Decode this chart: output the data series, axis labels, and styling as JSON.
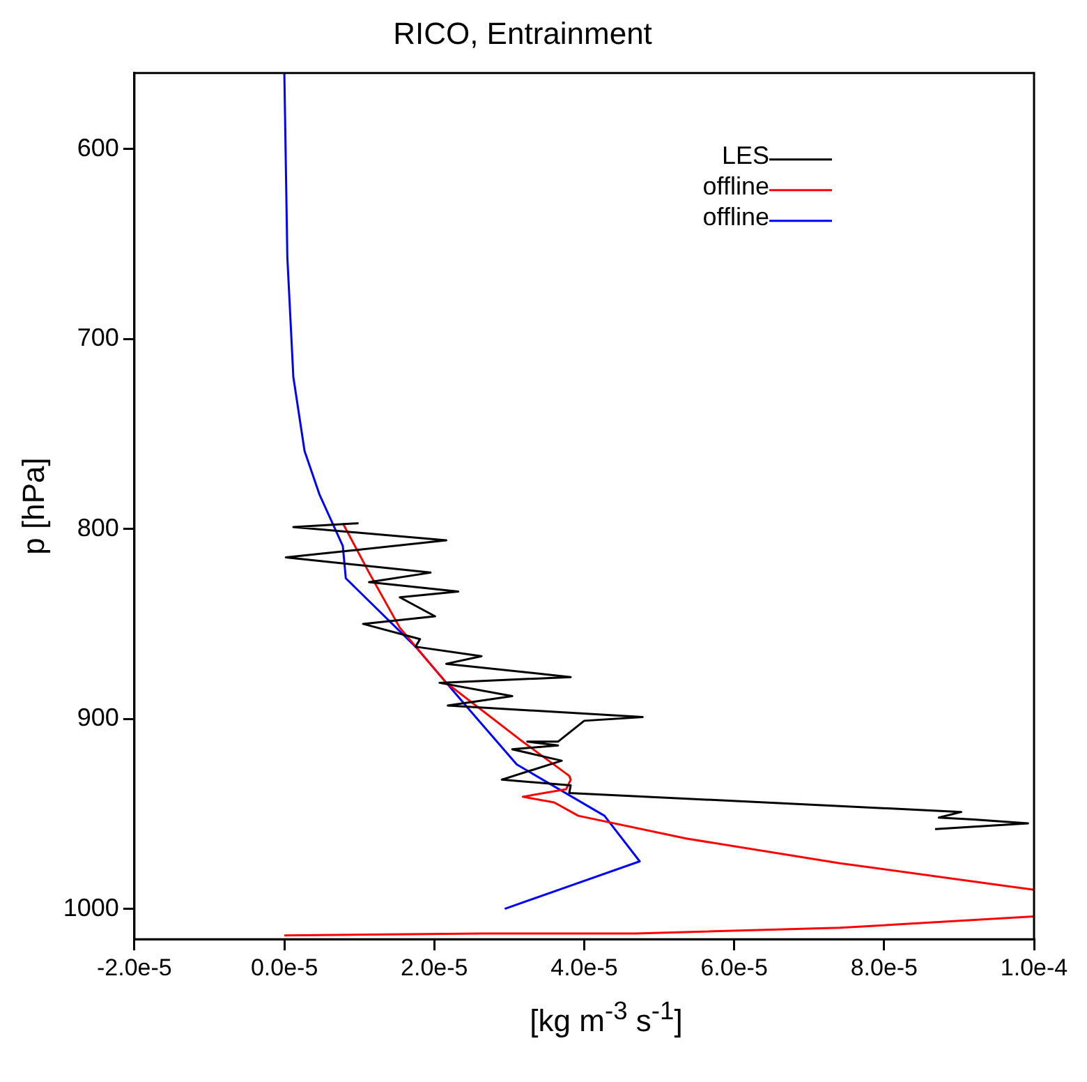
{
  "chart_data": {
    "type": "line",
    "title": "RICO, Entrainment",
    "xlabel": "[kg m$^{-3}$ s$^{-1}$]",
    "ylabel": "p [hPa]",
    "xlim": [
      -2e-05,
      0.0001
    ],
    "xticks": [
      {
        "value": -2e-05,
        "label": "-2.0e-5"
      },
      {
        "value": 0,
        "label": "0.0e-5"
      },
      {
        "value": 2e-05,
        "label": "2.0e-5"
      },
      {
        "value": 4e-05,
        "label": "4.0e-5"
      },
      {
        "value": 6e-05,
        "label": "6.0e-5"
      },
      {
        "value": 8e-05,
        "label": "8.0e-5"
      },
      {
        "value": 0.0001,
        "label": "1.0e-4"
      }
    ],
    "ylim": [
      1016,
      560
    ],
    "yticks": [
      600,
      700,
      800,
      900,
      1000
    ],
    "grid": false,
    "legend": "top right",
    "marker": "none",
    "line_style": "solid",
    "series": [
      {
        "name": "LES",
        "color": "#000000",
        "x": [
          9.9e-06,
          1.2e-06,
          2.16e-05,
          2e-07,
          1.95e-05,
          1.13e-05,
          2.32e-05,
          1.54e-05,
          2.01e-05,
          1.05e-05,
          1.81e-05,
          1.75e-05,
          2.63e-05,
          2.16e-05,
          3.82e-05,
          2.07e-05,
          3.04e-05,
          2.18e-05,
          4.78e-05,
          4e-05,
          3.65e-05,
          3.24e-05,
          3.65e-05,
          3.04e-05,
          3.7e-05,
          2.9e-05,
          3.82e-05,
          3.8e-05,
          9.03e-05,
          8.73e-05,
          9.2e-05,
          9.92e-05,
          8.68e-05
        ],
        "values": [
          797,
          799,
          806,
          815,
          823,
          828,
          833,
          836,
          846,
          850,
          858,
          862,
          867,
          871,
          878,
          881,
          888,
          893,
          899,
          901,
          912,
          912,
          914,
          916,
          922,
          932,
          935,
          939,
          949,
          952,
          953,
          955,
          958
        ]
      },
      {
        "name": "offline",
        "color": "#ff0000",
        "x": [
          7.8e-06,
          1.13e-05,
          1.54e-05,
          2.16e-05,
          3.18e-05,
          3.8e-05,
          3.82e-05,
          3.76e-05,
          3.18e-05,
          3.6e-05,
          3.92e-05,
          5.36e-05,
          7.41e-05,
          0.0001,
          null,
          0.0001,
          7.41e-05,
          4.68e-05,
          2.63e-05,
          0
        ],
        "values": [
          797,
          823,
          852,
          881,
          912,
          930,
          932,
          937,
          941,
          944,
          951,
          963,
          976,
          990,
          null,
          1004,
          1010,
          1013,
          1013,
          1014
        ]
      },
      {
        "name": "offline",
        "color": "#0000ff",
        "x": [
          0,
          4e-07,
          1.2e-06,
          2.7e-06,
          4.7e-06,
          7.8e-06,
          8.2e-06,
          1.75e-05,
          2.42e-05,
          3.1e-05,
          4.27e-05,
          4.74e-05,
          2.94e-05
        ],
        "values": [
          560,
          657,
          720,
          759,
          782,
          809,
          826,
          862,
          893,
          924,
          951,
          975,
          1000
        ]
      }
    ]
  }
}
